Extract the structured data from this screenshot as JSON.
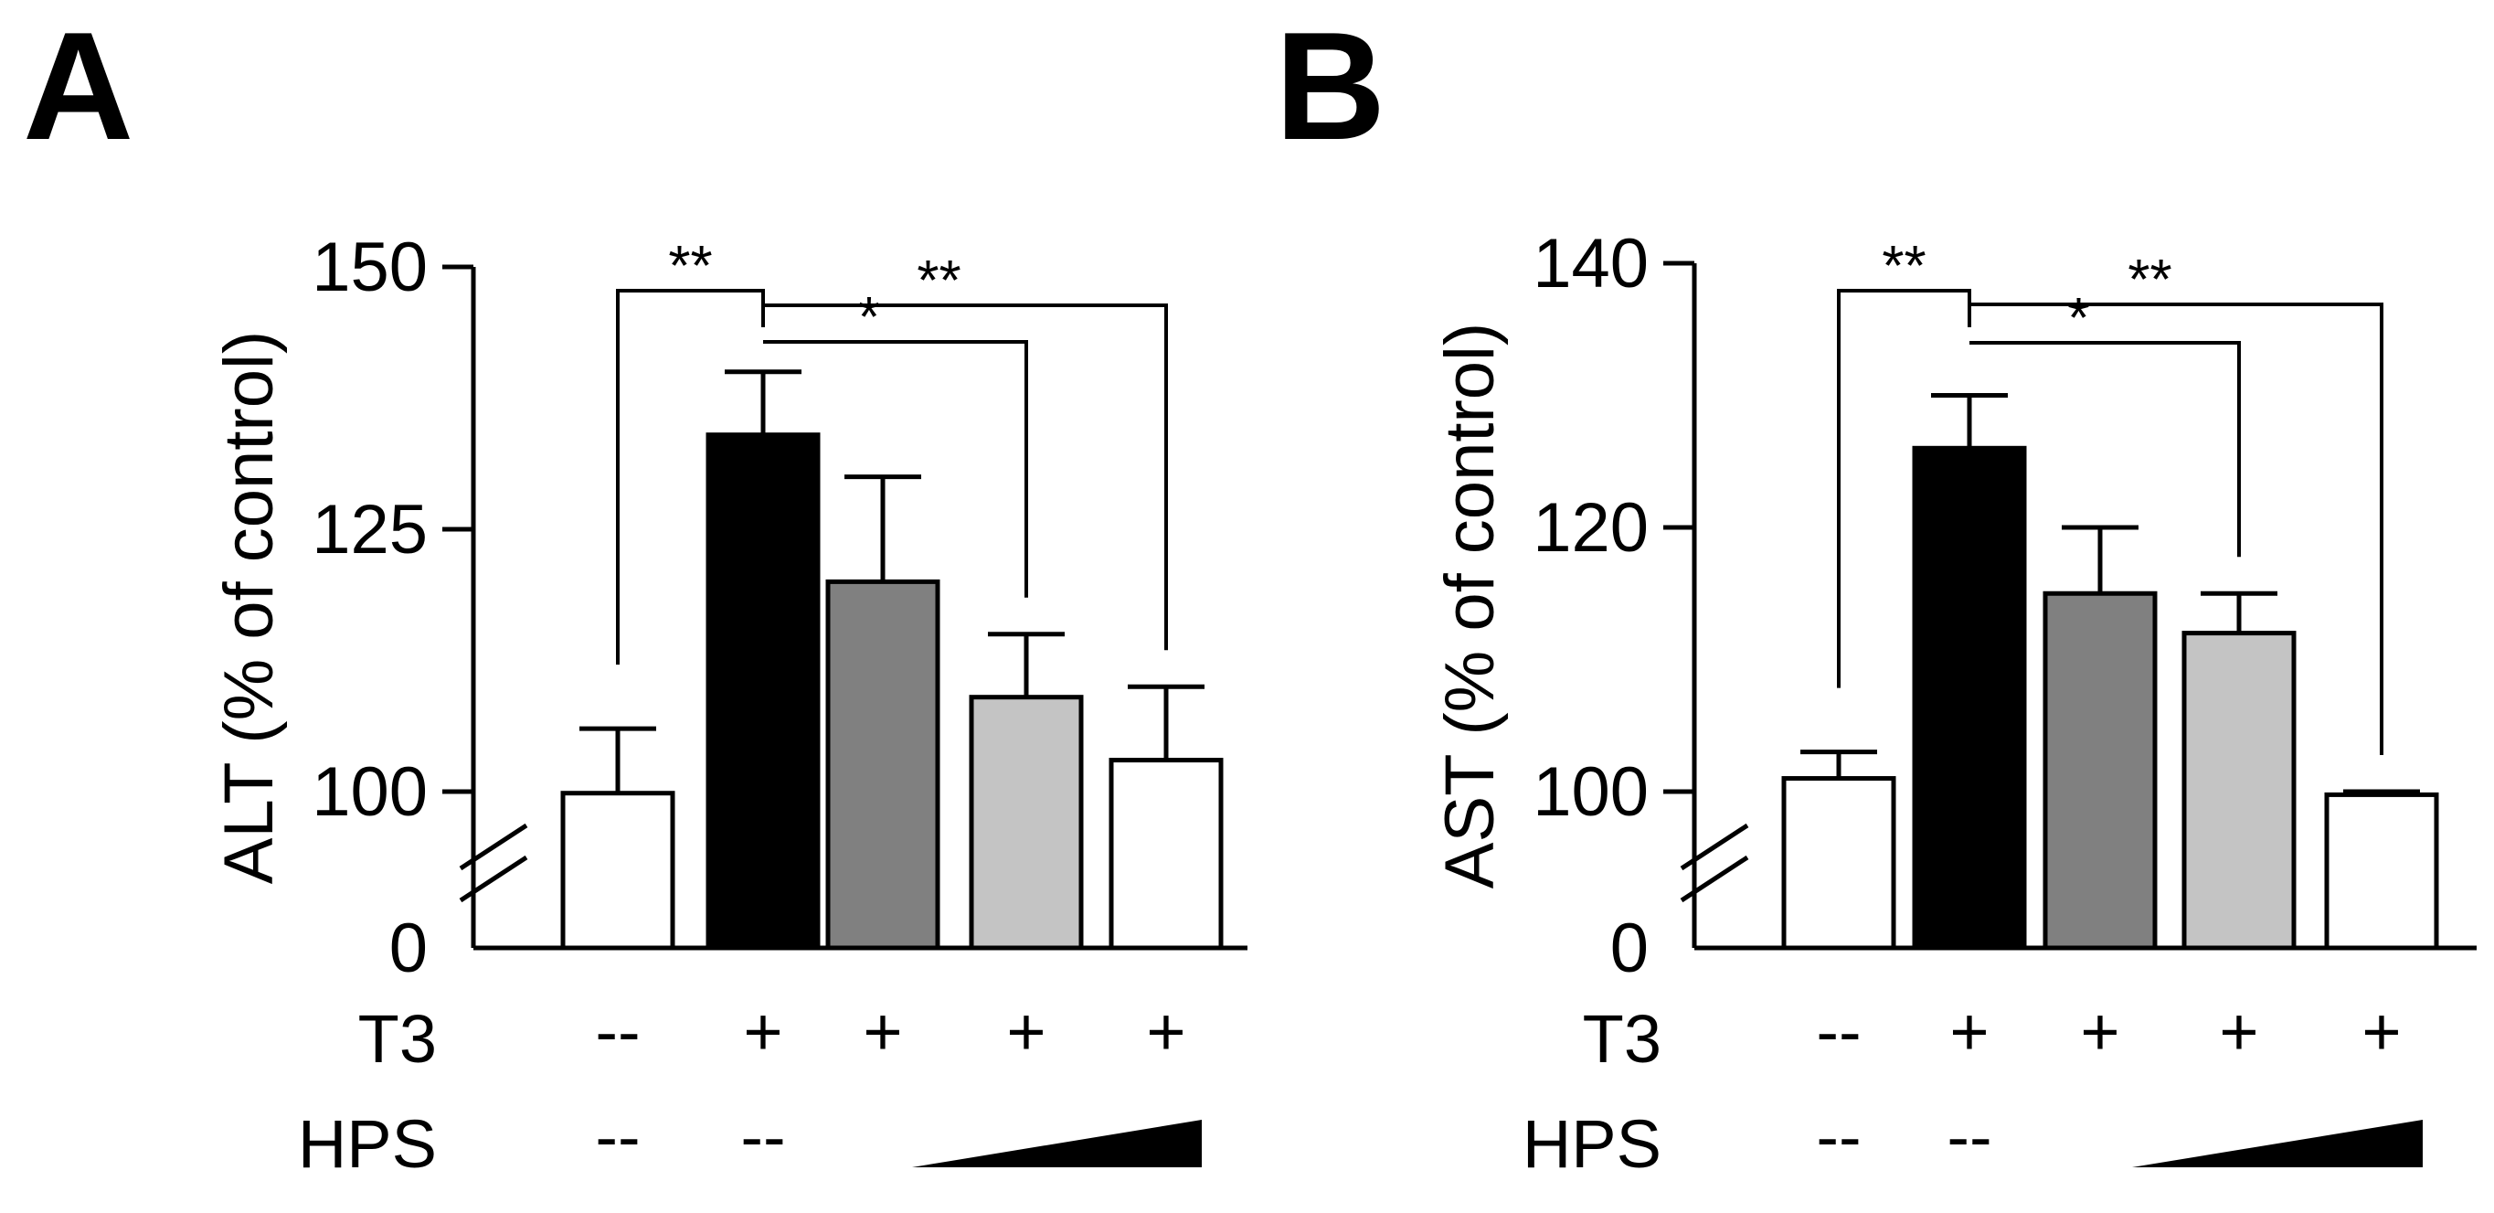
{
  "chart_data": [
    {
      "type": "bar",
      "panel": "A",
      "ylabel": "ALT (% of control)",
      "axis_break": true,
      "ylim": [
        0,
        150
      ],
      "ticks": [
        0,
        100,
        125,
        150
      ],
      "categories": [
        "T3 -- / HPS --",
        "T3 + / HPS --",
        "T3 + / HPS low",
        "T3 + / HPS mid",
        "T3 + / HPS high"
      ],
      "values": [
        99,
        134,
        120,
        109,
        103
      ],
      "errors": [
        7,
        6,
        10,
        6,
        7
      ],
      "colors": [
        "#ffffff",
        "#000000",
        "#808080",
        "#c4c4c4",
        "#ffffff"
      ],
      "conditions": {
        "t3_label": "T3",
        "hps_label": "HPS",
        "t3": [
          "--",
          "+",
          "+",
          "+",
          "+"
        ],
        "hps": [
          "--",
          "--"
        ]
      },
      "significance": [
        {
          "from": 0,
          "to": 1,
          "label": "**"
        },
        {
          "from": 1,
          "to": 3,
          "label": "*"
        },
        {
          "from": 1,
          "to": 4,
          "label": "**"
        }
      ]
    },
    {
      "type": "bar",
      "panel": "B",
      "ylabel": "AST (% of control)",
      "axis_break": true,
      "ylim": [
        0,
        140
      ],
      "ticks": [
        0,
        100,
        120,
        140
      ],
      "categories": [
        "T3 -- / HPS --",
        "T3 + / HPS --",
        "T3 + / HPS low",
        "T3 + / HPS mid",
        "T3 + / HPS high"
      ],
      "values": [
        101,
        126,
        115,
        112,
        98
      ],
      "errors": [
        2,
        4,
        5,
        3,
        2
      ],
      "colors": [
        "#ffffff",
        "#000000",
        "#808080",
        "#c4c4c4",
        "#ffffff"
      ],
      "conditions": {
        "t3_label": "T3",
        "hps_label": "HPS",
        "t3": [
          "--",
          "+",
          "+",
          "+",
          "+"
        ],
        "hps": [
          "--",
          "--"
        ]
      },
      "significance": [
        {
          "from": 0,
          "to": 1,
          "label": "**"
        },
        {
          "from": 1,
          "to": 3,
          "label": "*"
        },
        {
          "from": 1,
          "to": 4,
          "label": "**"
        }
      ]
    }
  ]
}
